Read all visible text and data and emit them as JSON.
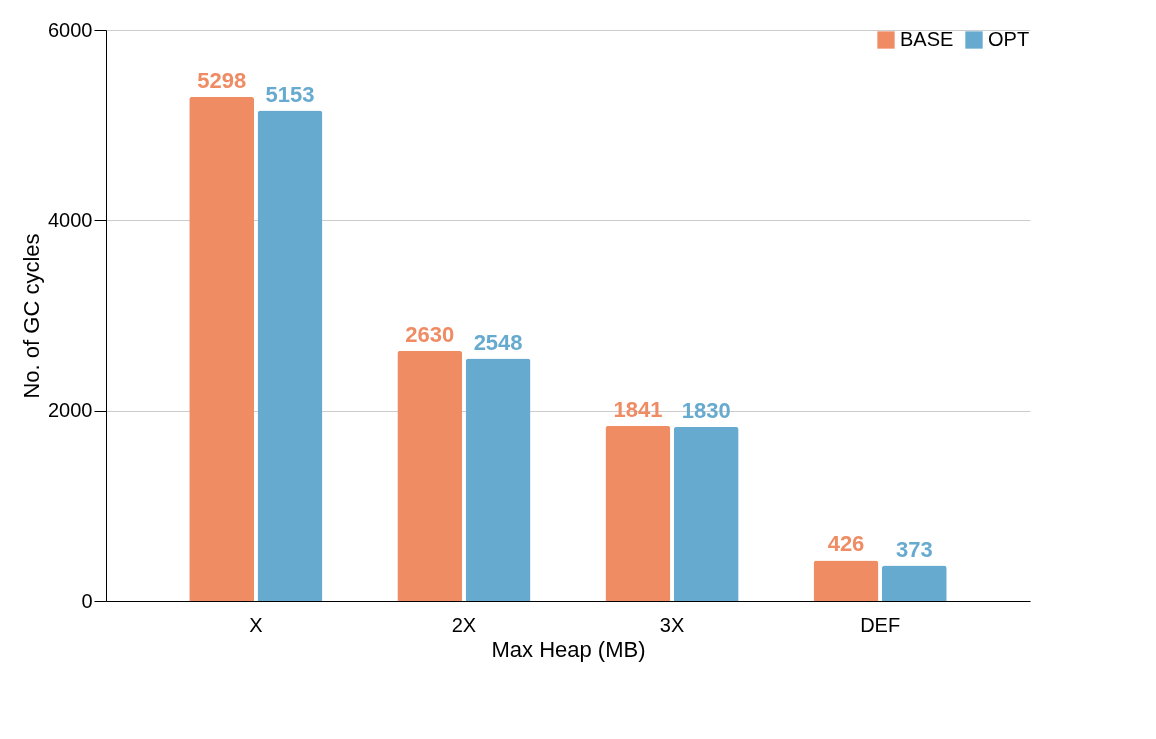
{
  "chart_data": {
    "type": "bar",
    "xlabel": "Max Heap (MB)",
    "ylabel": "No. of GC cycles",
    "categories": [
      "X",
      "2X",
      "3X",
      "DEF"
    ],
    "series": [
      {
        "name": "BASE",
        "color": "#f08c64",
        "values": [
          5298,
          2630,
          1841,
          426
        ]
      },
      {
        "name": "OPT",
        "color": "#67aacf",
        "values": [
          5153,
          2548,
          1830,
          373
        ]
      }
    ],
    "ylim": [
      0,
      6000
    ],
    "yticks": [
      0,
      2000,
      4000,
      6000
    ],
    "grid": "y",
    "legend": "top right",
    "data_labels": true
  }
}
